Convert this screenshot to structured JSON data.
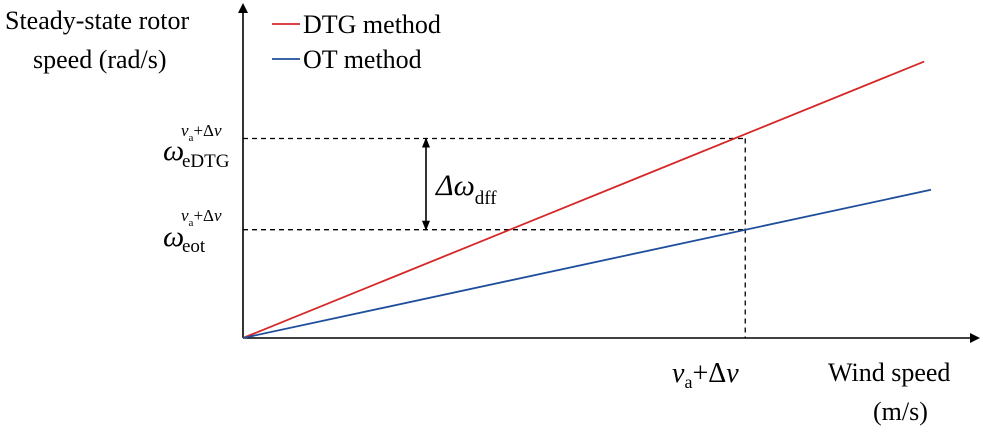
{
  "chart_data": {
    "type": "line",
    "ylabel_line1": "Steady-state rotor",
    "ylabel_line2": "speed (rad/s)",
    "xlabel_line1": "Wind speed",
    "xlabel_line2": "(m/s)",
    "xlim": [
      0,
      1
    ],
    "ylim": [
      0,
      1
    ],
    "series": [
      {
        "name": "DTG method",
        "color": "#d62728",
        "x": [
          0,
          0.99
        ],
        "y": [
          0,
          0.97
        ]
      },
      {
        "name": "OT method",
        "color": "#1f4e9c",
        "x": [
          0,
          1.0
        ],
        "y": [
          0,
          0.52
        ]
      }
    ],
    "marker_x": 0.73,
    "marker_x_label": {
      "v": "v",
      "sub": "a",
      "rest": "+Δ",
      "v2": "v"
    },
    "y_markers": [
      {
        "omega": "ω",
        "sup_v": "v",
        "sup_sub": "a",
        "sup_rest": "+Δ",
        "sup_v2": "v",
        "sub": "eDTG",
        "value": 0.7
      },
      {
        "omega": "ω",
        "sup_v": "v",
        "sup_sub": "a",
        "sup_rest": "+Δ",
        "sup_v2": "v",
        "sub": "eot",
        "value": 0.38
      }
    ],
    "delta_label": {
      "main": "Δω",
      "sub": "dff"
    },
    "grid": false,
    "legend_position": "top-left"
  }
}
